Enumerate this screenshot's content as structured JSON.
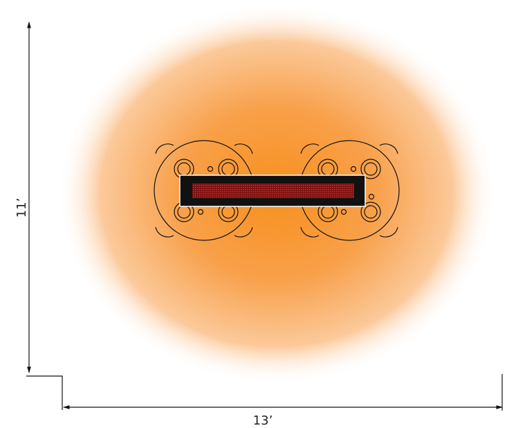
{
  "dimensions": {
    "height": "11’",
    "width": "13’"
  }
}
